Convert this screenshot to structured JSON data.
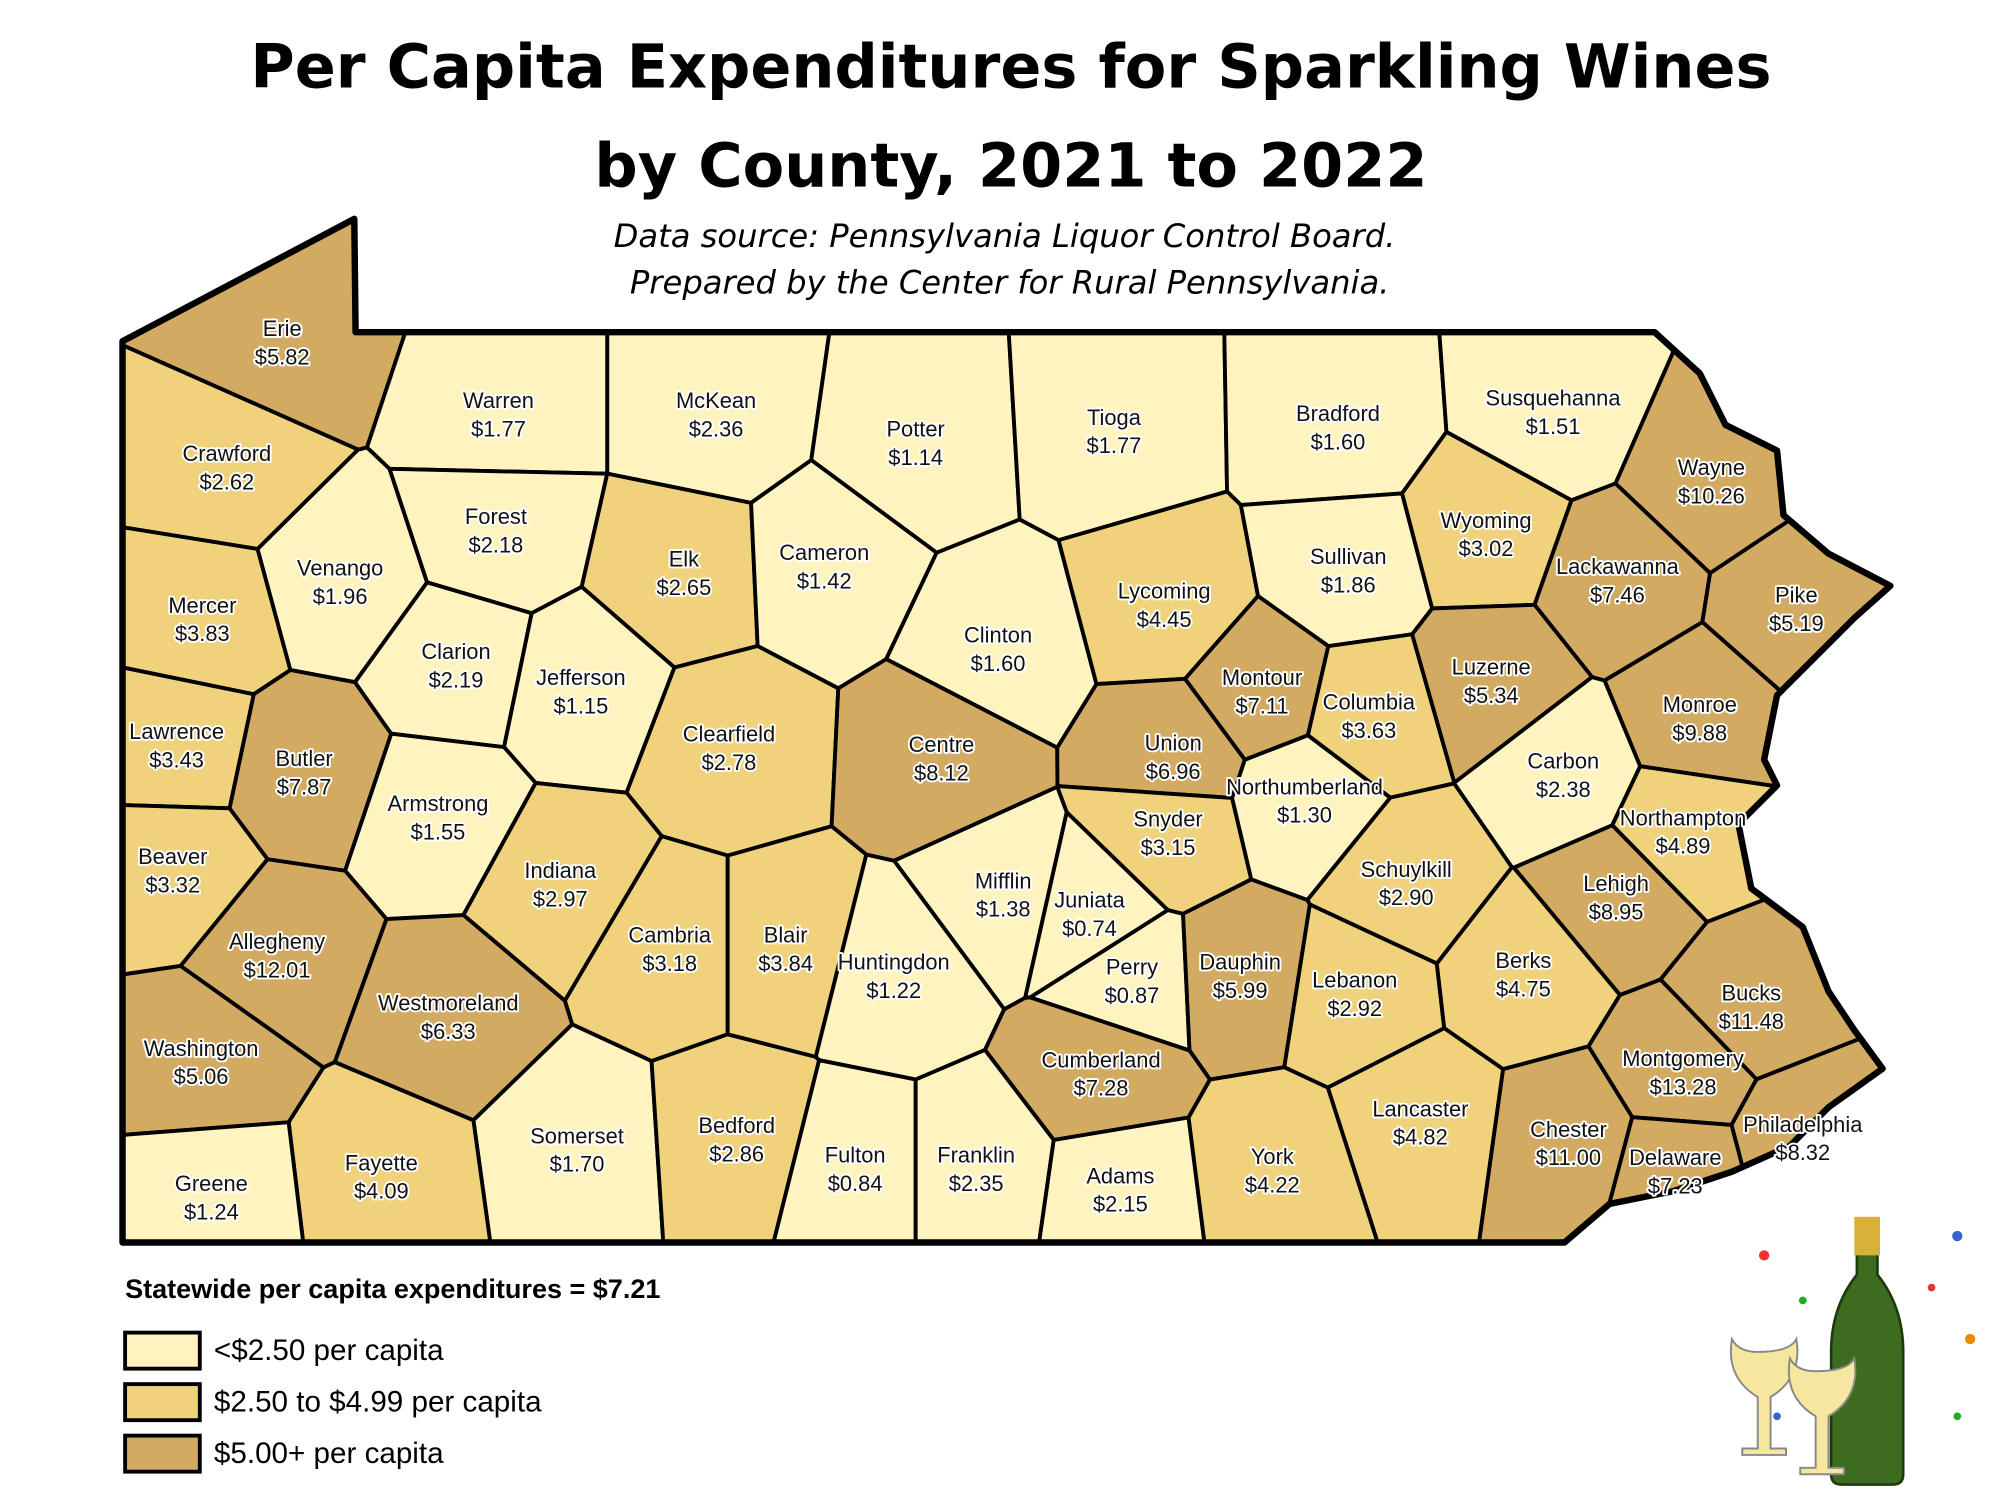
{
  "header": {
    "title_lines": [
      "Per Capita Expenditures for Sparkling Wines",
      "by County, 2021 to 2022"
    ],
    "subtitle_lines": [
      "Data source: Pennsylvania Liquor Control Board.",
      "Prepared by the Center for Rural Pennsylvania."
    ]
  },
  "map": {
    "counties": [
      {
        "name": "Erie",
        "label": "$5.82",
        "class": 2
      },
      {
        "name": "Crawford",
        "label": "$2.62",
        "class": 1
      },
      {
        "name": "Warren",
        "label": "$1.77",
        "class": 0
      },
      {
        "name": "McKean",
        "label": "$2.36",
        "class": 0
      },
      {
        "name": "Potter",
        "label": "$1.14",
        "class": 0
      },
      {
        "name": "Tioga",
        "label": "$1.77",
        "class": 0
      },
      {
        "name": "Bradford",
        "label": "$1.60",
        "class": 0
      },
      {
        "name": "Susquehanna",
        "label": "$1.51",
        "class": 0
      },
      {
        "name": "Wayne",
        "label": "$10.26",
        "class": 2
      },
      {
        "name": "Mercer",
        "label": "$3.83",
        "class": 1
      },
      {
        "name": "Venango",
        "label": "$1.96",
        "class": 0
      },
      {
        "name": "Forest",
        "label": "$2.18",
        "class": 0
      },
      {
        "name": "Elk",
        "label": "$2.65",
        "class": 1
      },
      {
        "name": "Cameron",
        "label": "$1.42",
        "class": 0
      },
      {
        "name": "Clinton",
        "label": "$1.60",
        "class": 0
      },
      {
        "name": "Lycoming",
        "label": "$4.45",
        "class": 1
      },
      {
        "name": "Sullivan",
        "label": "$1.86",
        "class": 0
      },
      {
        "name": "Wyoming",
        "label": "$3.02",
        "class": 1
      },
      {
        "name": "Lackawanna",
        "label": "$7.46",
        "class": 2
      },
      {
        "name": "Pike",
        "label": "$5.19",
        "class": 2
      },
      {
        "name": "Lawrence",
        "label": "$3.43",
        "class": 1
      },
      {
        "name": "Butler",
        "label": "$7.87",
        "class": 2
      },
      {
        "name": "Clarion",
        "label": "$2.19",
        "class": 0
      },
      {
        "name": "Jefferson",
        "label": "$1.15",
        "class": 0
      },
      {
        "name": "Clearfield",
        "label": "$2.78",
        "class": 1
      },
      {
        "name": "Centre",
        "label": "$8.12",
        "class": 2
      },
      {
        "name": "Montour",
        "label": "$7.11",
        "class": 2
      },
      {
        "name": "Columbia",
        "label": "$3.63",
        "class": 1
      },
      {
        "name": "Luzerne",
        "label": "$5.34",
        "class": 2
      },
      {
        "name": "Monroe",
        "label": "$9.88",
        "class": 2
      },
      {
        "name": "Union",
        "label": "$6.96",
        "class": 2
      },
      {
        "name": "Armstrong",
        "label": "$1.55",
        "class": 0
      },
      {
        "name": "Beaver",
        "label": "$3.32",
        "class": 1
      },
      {
        "name": "Indiana",
        "label": "$2.97",
        "class": 1
      },
      {
        "name": "Snyder",
        "label": "$3.15",
        "class": 1
      },
      {
        "name": "Northumberland",
        "label": "$1.30",
        "class": 0
      },
      {
        "name": "Carbon",
        "label": "$2.38",
        "class": 0
      },
      {
        "name": "Northampton",
        "label": "$4.89",
        "class": 1
      },
      {
        "name": "Schuylkill",
        "label": "$2.90",
        "class": 1
      },
      {
        "name": "Lehigh",
        "label": "$8.95",
        "class": 2
      },
      {
        "name": "Mifflin",
        "label": "$1.38",
        "class": 0
      },
      {
        "name": "Juniata",
        "label": "$0.74",
        "class": 0
      },
      {
        "name": "Allegheny",
        "label": "$12.01",
        "class": 2
      },
      {
        "name": "Cambria",
        "label": "$3.18",
        "class": 1
      },
      {
        "name": "Blair",
        "label": "$3.84",
        "class": 1
      },
      {
        "name": "Huntingdon",
        "label": "$1.22",
        "class": 0
      },
      {
        "name": "Perry",
        "label": "$0.87",
        "class": 0
      },
      {
        "name": "Dauphin",
        "label": "$5.99",
        "class": 2
      },
      {
        "name": "Lebanon",
        "label": "$2.92",
        "class": 1
      },
      {
        "name": "Berks",
        "label": "$4.75",
        "class": 1
      },
      {
        "name": "Bucks",
        "label": "$11.48",
        "class": 2
      },
      {
        "name": "Westmoreland",
        "label": "$6.33",
        "class": 2
      },
      {
        "name": "Washington",
        "label": "$5.06",
        "class": 2
      },
      {
        "name": "Cumberland",
        "label": "$7.28",
        "class": 2
      },
      {
        "name": "Montgomery",
        "label": "$13.28",
        "class": 2
      },
      {
        "name": "Lancaster",
        "label": "$4.82",
        "class": 1
      },
      {
        "name": "Chester",
        "label": "$11.00",
        "class": 2
      },
      {
        "name": "Philadelphia",
        "label": "$8.32",
        "class": 2
      },
      {
        "name": "Delaware",
        "label": "$7.23",
        "class": 2
      },
      {
        "name": "Somerset",
        "label": "$1.70",
        "class": 0
      },
      {
        "name": "Bedford",
        "label": "$2.86",
        "class": 1
      },
      {
        "name": "Fulton",
        "label": "$0.84",
        "class": 0
      },
      {
        "name": "Franklin",
        "label": "$2.35",
        "class": 0
      },
      {
        "name": "Adams",
        "label": "$2.15",
        "class": 0
      },
      {
        "name": "York",
        "label": "$4.22",
        "class": 1
      },
      {
        "name": "Fayette",
        "label": "$4.09",
        "class": 1
      },
      {
        "name": "Greene",
        "label": "$1.24",
        "class": 0
      }
    ]
  },
  "statewide": "Statewide per capita expenditures = $7.21",
  "legend": [
    {
      "label": "<$2.50 per capita",
      "color": "#fff3c0"
    },
    {
      "label": "$2.50 to $4.99 per capita",
      "color": "#f0d27c"
    },
    {
      "label": "$5.00+ per capita",
      "color": "#d3aa62"
    }
  ]
}
